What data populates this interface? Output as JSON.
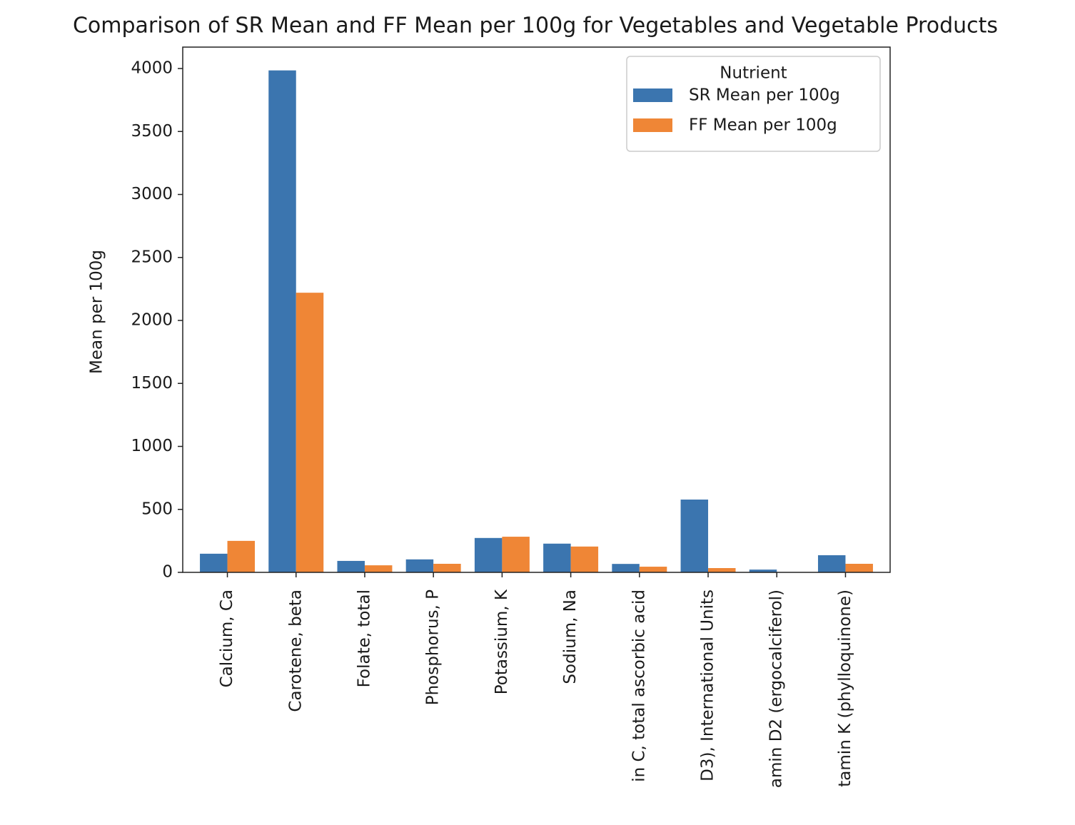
{
  "chart_data": {
    "type": "bar",
    "title": "Comparison of SR Mean and FF Mean per 100g for Vegetables and Vegetable Products",
    "y_label": "Mean per 100g",
    "categories": [
      "Calcium, Ca",
      "Carotene, beta",
      "Folate, total",
      "Phosphorus, P",
      "Potassium, K",
      "Sodium, Na",
      "in C, total ascorbic acid",
      "D3), International Units",
      "amin D2 (ergocalciferol)",
      "tamin K (phylloquinone)"
    ],
    "series": [
      {
        "name": "SR Mean per 100g",
        "color": "#3b75af",
        "values": [
          148,
          3985,
          91,
          103,
          273,
          228,
          67,
          578,
          22,
          136
        ]
      },
      {
        "name": "FF Mean per 100g",
        "color": "#ef8636",
        "values": [
          250,
          2220,
          56,
          68,
          283,
          205,
          45,
          34,
          0,
          68
        ]
      }
    ],
    "legend_title": "Nutrient",
    "legend": "upper right",
    "ylim": [
      0,
      4170
    ],
    "yticks": [
      0,
      500,
      1000,
      1500,
      2000,
      2500,
      3000,
      3500,
      4000
    ],
    "grid": false
  }
}
